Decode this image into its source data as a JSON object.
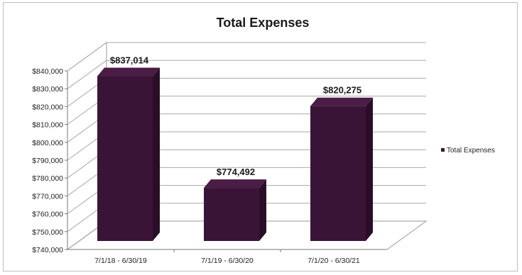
{
  "chart_data": {
    "type": "bar",
    "title": "Total Expenses",
    "categories": [
      "7/1/18 - 6/30/19",
      "7/1/19 - 6/30/20",
      "7/1/20 - 6/30/21"
    ],
    "series": [
      {
        "name": "Total Expenses",
        "values": [
          837014,
          774492,
          820275
        ]
      }
    ],
    "data_labels": [
      "$837,014",
      "$774,492",
      "$820,275"
    ],
    "y_ticks": [
      "$740,000",
      "$750,000",
      "$760,000",
      "$770,000",
      "$780,000",
      "$790,000",
      "$800,000",
      "$810,000",
      "$820,000",
      "$830,000",
      "$840,000"
    ],
    "ylim": [
      740000,
      840000
    ],
    "grid": true,
    "legend_position": "right",
    "style": "3d-column",
    "bar_color": "#3a1436"
  }
}
